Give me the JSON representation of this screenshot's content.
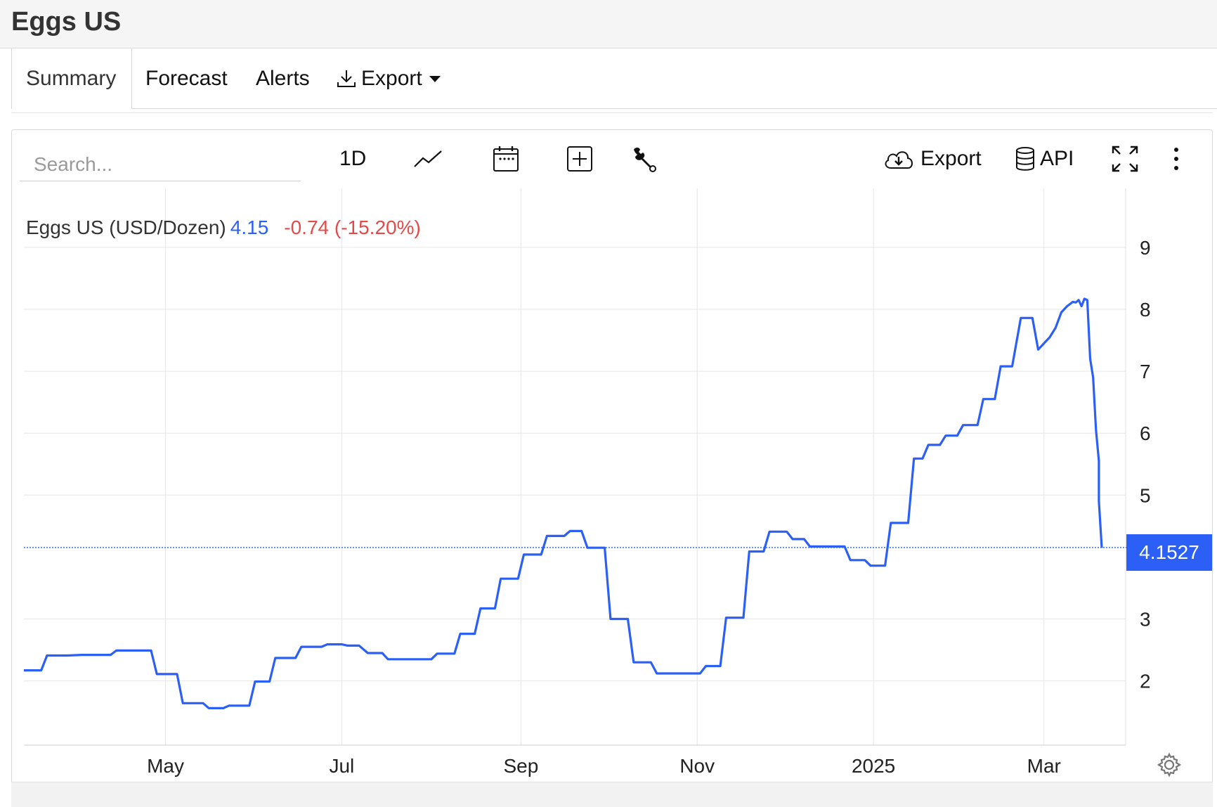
{
  "page": {
    "title": "Eggs US"
  },
  "tabs": [
    {
      "label": "Summary",
      "active": true
    },
    {
      "label": "Forecast"
    },
    {
      "label": "Alerts"
    },
    {
      "label": "Export"
    }
  ],
  "toolbar": {
    "search_placeholder": "Search...",
    "interval_label": "1D",
    "export_label": "Export",
    "api_label": "API",
    "icons": [
      "line-chart-icon",
      "calendar-icon",
      "compare-plus-icon",
      "wrench-icon",
      "cloud-download-icon",
      "database-icon",
      "fullscreen-icon",
      "more-vertical-icon",
      "settings-gear-icon",
      "download-icon"
    ]
  },
  "legend": {
    "name": "Eggs US (USD/Dozen)",
    "value": "4.15",
    "change": "-0.74 (-15.20%)"
  },
  "last_value_label": "4.1527",
  "colors": {
    "line": "#2c5ff6",
    "change": "#e34a4a",
    "grid": "#e6e6e6"
  },
  "chart_data": {
    "type": "line",
    "y_ticks": [
      2,
      3,
      5,
      6,
      7,
      8,
      9
    ],
    "y_tick_labels": [
      "2",
      "3",
      "5",
      "6",
      "7",
      "8",
      "9"
    ],
    "ylim": [
      1,
      10
    ],
    "x_ticks": [
      {
        "label": "May",
        "x": "2024-05-01"
      },
      {
        "label": "Jul",
        "x": "2024-07-01"
      },
      {
        "label": "Sep",
        "x": "2024-09-01"
      },
      {
        "label": "Nov",
        "x": "2024-11-01"
      },
      {
        "label": "2025",
        "x": "2025-01-01"
      },
      {
        "label": "Mar",
        "x": "2025-03-01"
      }
    ],
    "xlim": [
      "2024-03-13",
      "2025-03-21"
    ],
    "grid": true,
    "last_value": 4.1527,
    "series": [
      {
        "points": [
          [
            "2024-03-13",
            2.17
          ],
          [
            "2024-03-19",
            2.17
          ],
          [
            "2024-03-21",
            2.41
          ],
          [
            "2024-03-28",
            2.41
          ],
          [
            "2024-04-02",
            2.42
          ],
          [
            "2024-04-12",
            2.42
          ],
          [
            "2024-04-14",
            2.49
          ],
          [
            "2024-04-21",
            2.49
          ],
          [
            "2024-04-26",
            2.49
          ],
          [
            "2024-04-28",
            2.11
          ],
          [
            "2024-05-05",
            2.11
          ],
          [
            "2024-05-07",
            1.64
          ],
          [
            "2024-05-14",
            1.64
          ],
          [
            "2024-05-16",
            1.56
          ],
          [
            "2024-05-21",
            1.56
          ],
          [
            "2024-05-23",
            1.6
          ],
          [
            "2024-05-30",
            1.6
          ],
          [
            "2024-06-01",
            1.99
          ],
          [
            "2024-06-06",
            1.99
          ],
          [
            "2024-06-08",
            2.37
          ],
          [
            "2024-06-15",
            2.37
          ],
          [
            "2024-06-17",
            2.55
          ],
          [
            "2024-06-24",
            2.55
          ],
          [
            "2024-06-26",
            2.59
          ],
          [
            "2024-07-01",
            2.59
          ],
          [
            "2024-07-03",
            2.57
          ],
          [
            "2024-07-07",
            2.57
          ],
          [
            "2024-07-10",
            2.45
          ],
          [
            "2024-07-15",
            2.45
          ],
          [
            "2024-07-17",
            2.35
          ],
          [
            "2024-08-01",
            2.35
          ],
          [
            "2024-08-03",
            2.44
          ],
          [
            "2024-08-09",
            2.44
          ],
          [
            "2024-08-11",
            2.76
          ],
          [
            "2024-08-16",
            2.76
          ],
          [
            "2024-08-18",
            3.17
          ],
          [
            "2024-08-23",
            3.17
          ],
          [
            "2024-08-25",
            3.65
          ],
          [
            "2024-08-31",
            3.65
          ],
          [
            "2024-09-02",
            4.04
          ],
          [
            "2024-09-08",
            4.04
          ],
          [
            "2024-09-10",
            4.34
          ],
          [
            "2024-09-16",
            4.34
          ],
          [
            "2024-09-18",
            4.42
          ],
          [
            "2024-09-22",
            4.42
          ],
          [
            "2024-09-24",
            4.15
          ],
          [
            "2024-09-30",
            4.15
          ],
          [
            "2024-10-02",
            3.0
          ],
          [
            "2024-10-08",
            3.0
          ],
          [
            "2024-10-10",
            2.3
          ],
          [
            "2024-10-16",
            2.3
          ],
          [
            "2024-10-18",
            2.12
          ],
          [
            "2024-11-02",
            2.12
          ],
          [
            "2024-11-04",
            2.24
          ],
          [
            "2024-11-09",
            2.24
          ],
          [
            "2024-11-11",
            3.02
          ],
          [
            "2024-11-17",
            3.02
          ],
          [
            "2024-11-19",
            4.09
          ],
          [
            "2024-11-24",
            4.09
          ],
          [
            "2024-11-26",
            4.41
          ],
          [
            "2024-12-02",
            4.41
          ],
          [
            "2024-12-04",
            4.29
          ],
          [
            "2024-12-08",
            4.29
          ],
          [
            "2024-12-10",
            4.17
          ],
          [
            "2024-12-22",
            4.17
          ],
          [
            "2024-12-24",
            3.95
          ],
          [
            "2024-12-29",
            3.95
          ],
          [
            "2024-12-31",
            3.86
          ],
          [
            "2025-01-05",
            3.86
          ],
          [
            "2025-01-07",
            4.55
          ],
          [
            "2025-01-13",
            4.55
          ],
          [
            "2025-01-15",
            5.59
          ],
          [
            "2025-01-18",
            5.59
          ],
          [
            "2025-01-20",
            5.81
          ],
          [
            "2025-01-24",
            5.81
          ],
          [
            "2025-01-26",
            5.96
          ],
          [
            "2025-01-30",
            5.96
          ],
          [
            "2025-02-01",
            6.13
          ],
          [
            "2025-02-06",
            6.13
          ],
          [
            "2025-02-08",
            6.55
          ],
          [
            "2025-02-12",
            6.55
          ],
          [
            "2025-02-14",
            7.08
          ],
          [
            "2025-02-18",
            7.08
          ],
          [
            "2025-02-21",
            7.86
          ],
          [
            "2025-02-25",
            7.86
          ],
          [
            "2025-02-27",
            7.35
          ],
          [
            "2025-03-01",
            7.45
          ],
          [
            "2025-03-03",
            7.55
          ],
          [
            "2025-03-05",
            7.7
          ],
          [
            "2025-03-07",
            7.95
          ],
          [
            "2025-03-09",
            8.05
          ],
          [
            "2025-03-11",
            8.12
          ],
          [
            "2025-03-12",
            8.11
          ],
          [
            "2025-03-13",
            8.15
          ],
          [
            "2025-03-14",
            8.05
          ],
          [
            "2025-03-15",
            8.17
          ],
          [
            "2025-03-16",
            8.15
          ],
          [
            "2025-03-17",
            7.2
          ],
          [
            "2025-03-18",
            6.9
          ],
          [
            "2025-03-19",
            6.05
          ],
          [
            "2025-03-20",
            5.55
          ],
          [
            "2025-03-20",
            5.25
          ],
          [
            "2025-03-20",
            4.9
          ],
          [
            "2025-03-21",
            4.15
          ]
        ]
      }
    ]
  }
}
